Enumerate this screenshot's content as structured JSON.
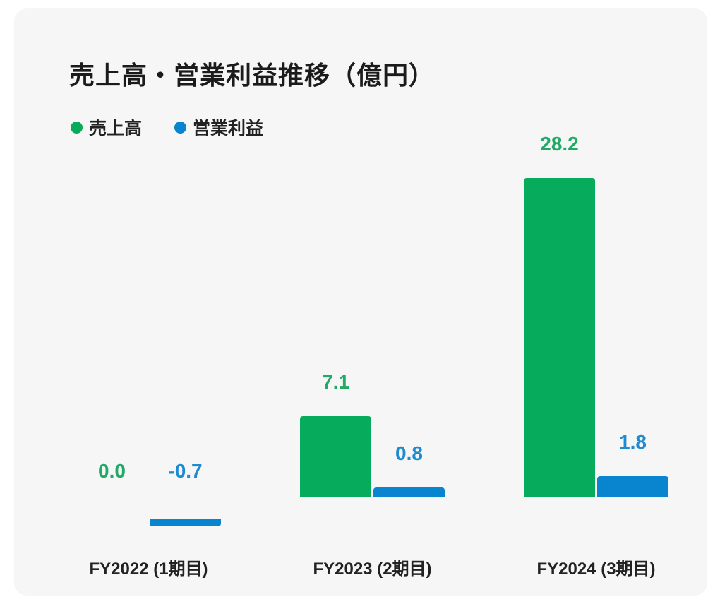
{
  "chart_data": {
    "type": "bar",
    "title": "売上高・営業利益推移（億円）",
    "categories": [
      "FY2022 (1期目)",
      "FY2023 (2期目)",
      "FY2024 (3期目)"
    ],
    "category_keys": [
      "fy2022",
      "fy2023",
      "fy2024"
    ],
    "series": [
      {
        "key": "revenue",
        "name": "売上高",
        "color": "#06ac5b",
        "label_color": "#21aa66",
        "values": [
          0.0,
          7.1,
          28.2
        ],
        "labels": [
          "0.0",
          "7.1",
          "28.2"
        ]
      },
      {
        "key": "operating-profit",
        "name": "営業利益",
        "color": "#0885ce",
        "label_color": "#1e8ad0",
        "values": [
          -0.7,
          0.8,
          1.8
        ],
        "labels": [
          "-0.7",
          "0.8",
          "1.8"
        ]
      }
    ],
    "legend_position": "top-left",
    "grid": false,
    "axes_visible": false,
    "ylim": [
      -0.7,
      28.2
    ],
    "colors": {
      "card_background": "#f6f6f6",
      "page_background": "#ffffff",
      "text": "#1b1b1b"
    }
  }
}
